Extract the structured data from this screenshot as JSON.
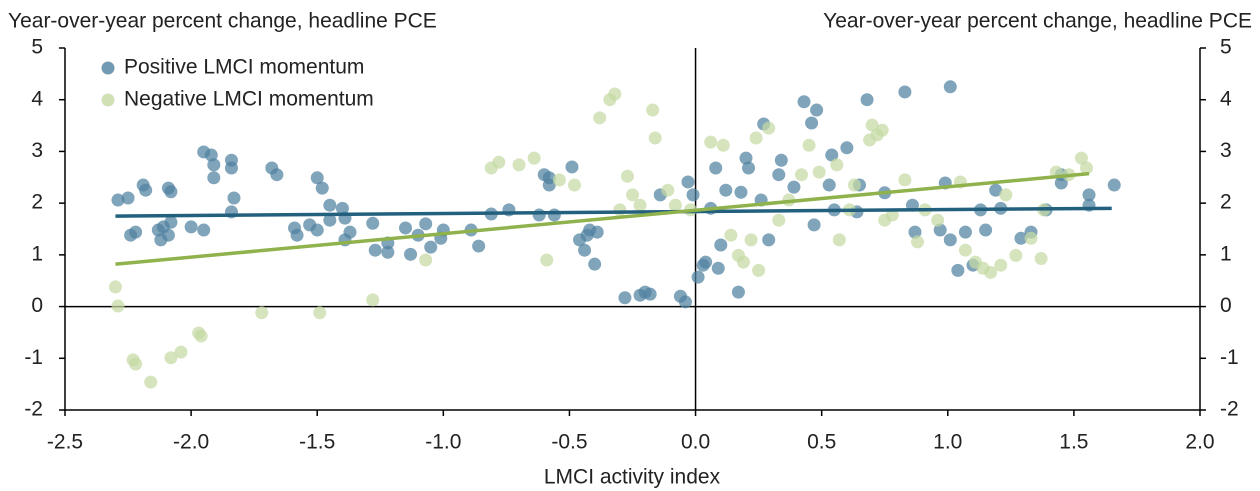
{
  "chart_data": {
    "type": "scatter",
    "y_label": "Year-over-year percent change, headline PCE",
    "y2_label": "Year-over-year percent change, headline PCE",
    "x_label": "LMCI activity index",
    "xlim": [
      -2.5,
      2.0
    ],
    "xticks": [
      -2.5,
      {
        "value": -2.0,
        "label": "-2.0"
      },
      -1.5,
      {
        "value": -1.0,
        "label": "-1.0"
      },
      -0.5,
      {
        "value": 0.0,
        "label": "0.0"
      },
      0.5,
      {
        "value": 1.0,
        "label": "1.0"
      },
      1.5,
      {
        "value": 2.0,
        "label": "2.0"
      }
    ],
    "ylim": [
      -2,
      5
    ],
    "yticks": [
      -2,
      -1,
      0,
      1,
      2,
      3,
      4,
      5
    ],
    "y2lim": [
      -2,
      5
    ],
    "y2ticks": [
      -2,
      -1,
      0,
      1,
      2,
      3,
      4,
      5
    ],
    "legend": "upper left",
    "series": [
      {
        "name": "Positive LMCI momentum",
        "color": "#4f81a0",
        "x": [
          -2.29,
          -2.25,
          -2.24,
          -2.22,
          -2.19,
          -2.18,
          -2.13,
          -2.12,
          -2.11,
          -2.09,
          -2.08,
          -2.09,
          -2.08,
          -2.0,
          -1.95,
          -1.95,
          -1.92,
          -1.91,
          -1.91,
          -1.84,
          -1.84,
          -1.83,
          -1.84,
          -1.68,
          -1.66,
          -1.59,
          -1.58,
          -1.5,
          -1.48,
          -1.53,
          -1.5,
          -1.45,
          -1.45,
          -1.4,
          -1.39,
          -1.37,
          -1.39,
          -1.28,
          -1.27,
          -1.22,
          -1.22,
          -1.15,
          -1.13,
          -1.1,
          -1.07,
          -1.05,
          -1.01,
          -1.0,
          -0.89,
          -0.86,
          -0.81,
          -0.74,
          -0.62,
          -0.6,
          -0.58,
          -0.58,
          -0.49,
          -0.56,
          -0.46,
          -0.44,
          -0.43,
          -0.42,
          -0.4,
          -0.39,
          -0.28,
          -0.22,
          -0.2,
          -0.18,
          -0.14,
          -0.06,
          -0.04,
          -0.03,
          -0.01,
          0.01,
          0.03,
          0.04,
          0.06,
          0.08,
          0.09,
          0.1,
          0.12,
          0.17,
          0.18,
          0.2,
          0.21,
          0.26,
          0.27,
          0.29,
          0.33,
          0.34,
          0.39,
          0.43,
          0.46,
          0.48,
          0.47,
          0.53,
          0.54,
          0.55,
          0.6,
          0.64,
          0.65,
          0.68,
          0.75,
          0.83,
          0.86,
          0.87,
          0.97,
          0.99,
          1.01,
          1.01,
          1.04,
          1.07,
          1.1,
          1.13,
          1.15,
          1.19,
          1.21,
          1.29,
          1.33,
          1.39,
          1.45,
          1.45,
          1.56,
          1.56,
          1.66
        ],
        "values": [
          2.06,
          2.1,
          1.38,
          1.44,
          2.35,
          2.25,
          1.48,
          1.29,
          1.54,
          1.38,
          1.63,
          2.29,
          2.22,
          1.54,
          1.48,
          2.99,
          2.93,
          2.74,
          2.49,
          2.83,
          2.68,
          2.1,
          1.83,
          2.68,
          2.55,
          1.52,
          1.38,
          2.49,
          2.29,
          1.58,
          1.48,
          1.67,
          1.96,
          1.9,
          1.71,
          1.44,
          1.29,
          1.61,
          1.09,
          1.05,
          1.23,
          1.52,
          1.01,
          1.38,
          1.6,
          1.15,
          1.32,
          1.48,
          1.48,
          1.17,
          1.79,
          1.87,
          1.77,
          2.55,
          2.49,
          2.35,
          2.7,
          1.77,
          1.29,
          1.09,
          1.38,
          1.48,
          0.82,
          1.44,
          0.17,
          0.22,
          0.28,
          0.24,
          2.16,
          0.2,
          0.09,
          2.41,
          2.16,
          0.57,
          0.8,
          0.86,
          1.9,
          2.68,
          0.74,
          1.19,
          2.25,
          0.28,
          2.21,
          2.87,
          2.68,
          2.06,
          3.53,
          1.29,
          2.55,
          2.83,
          2.31,
          3.96,
          3.55,
          3.8,
          1.58,
          2.35,
          2.93,
          1.87,
          3.07,
          1.83,
          2.35,
          4.0,
          2.2,
          4.15,
          1.96,
          1.44,
          1.48,
          2.39,
          1.29,
          4.25,
          0.7,
          1.44,
          0.8,
          1.87,
          1.48,
          2.25,
          1.9,
          1.32,
          1.44,
          1.87,
          2.39,
          2.55,
          2.16,
          1.96,
          2.35
        ]
      },
      {
        "name": "Negative LMCI momentum",
        "color": "#c5d9a4",
        "x": [
          -2.3,
          -2.29,
          -2.23,
          -2.22,
          -2.16,
          -2.08,
          -2.04,
          -1.97,
          -1.96,
          -1.72,
          -1.49,
          -1.28,
          -1.07,
          -0.81,
          -0.78,
          -0.7,
          -0.64,
          -0.59,
          -0.54,
          -0.48,
          -0.38,
          -0.34,
          -0.32,
          -0.3,
          -0.27,
          -0.25,
          -0.22,
          -0.17,
          -0.16,
          -0.11,
          -0.08,
          -0.02,
          0.06,
          0.11,
          0.14,
          0.17,
          0.19,
          0.22,
          0.24,
          0.25,
          0.29,
          0.33,
          0.37,
          0.42,
          0.45,
          0.49,
          0.56,
          0.57,
          0.61,
          0.63,
          0.69,
          0.7,
          0.72,
          0.74,
          0.75,
          0.78,
          0.83,
          0.88,
          0.91,
          0.96,
          1.05,
          1.07,
          1.11,
          1.14,
          1.17,
          1.21,
          1.23,
          1.27,
          1.33,
          1.37,
          1.38,
          1.43,
          1.48,
          1.53,
          1.55
        ],
        "values": [
          0.38,
          0.01,
          -1.03,
          -1.11,
          -1.46,
          -0.99,
          -0.88,
          -0.51,
          -0.57,
          -0.12,
          -0.12,
          0.13,
          0.9,
          2.68,
          2.79,
          2.74,
          2.87,
          0.9,
          2.45,
          2.35,
          3.65,
          4.0,
          4.11,
          1.87,
          2.52,
          2.16,
          1.96,
          3.8,
          3.26,
          2.25,
          1.96,
          1.87,
          3.18,
          3.12,
          1.38,
          0.99,
          0.86,
          1.29,
          3.26,
          0.7,
          3.45,
          1.67,
          2.06,
          2.55,
          3.12,
          2.6,
          2.74,
          1.29,
          1.87,
          2.35,
          3.22,
          3.51,
          3.32,
          3.41,
          1.67,
          1.77,
          2.45,
          1.25,
          1.87,
          1.67,
          2.41,
          1.09,
          0.86,
          0.74,
          0.66,
          0.8,
          2.16,
          0.99,
          1.32,
          0.93,
          1.87,
          2.6,
          2.55,
          2.87,
          2.68
        ]
      }
    ],
    "trend_lines": [
      {
        "color": "#23607e",
        "x": [
          -2.3,
          1.65
        ],
        "values": [
          1.75,
          1.9
        ]
      },
      {
        "color": "#8fb24d",
        "x": [
          -2.3,
          1.56
        ],
        "values": [
          0.82,
          2.57
        ]
      }
    ]
  }
}
